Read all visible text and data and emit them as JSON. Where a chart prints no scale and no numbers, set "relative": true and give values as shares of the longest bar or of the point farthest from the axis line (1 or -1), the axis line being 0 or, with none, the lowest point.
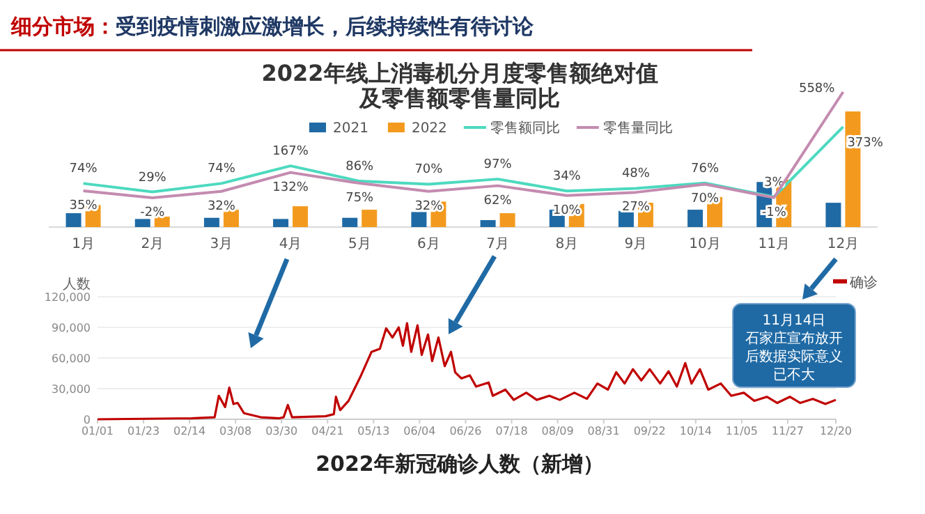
{
  "chart_data": [
    {
      "type": "bar",
      "title": "2022年线上消毒机分月度零售额绝对值及零售额零售量同比",
      "annotations": [
        "细分市场：",
        "受到疫情刺激应激增长，后续持续性有待讨论"
      ],
      "categories": [
        "1月",
        "2月",
        "3月",
        "4月",
        "5月",
        "6月",
        "7月",
        "8月",
        "9月",
        "10月",
        "11月",
        "12月"
      ],
      "relative": true,
      "legend": "top",
      "series": [
        {
          "name": "2021",
          "color": "#1f6aa5",
          "values": [
            0.12,
            0.07,
            0.08,
            0.07,
            0.08,
            0.13,
            0.06,
            0.15,
            0.14,
            0.15,
            0.39,
            0.21
          ]
        },
        {
          "name": "2022",
          "color": "#f39a1e",
          "values": [
            0.19,
            0.09,
            0.15,
            0.18,
            0.15,
            0.22,
            0.12,
            0.2,
            0.21,
            0.26,
            0.41,
            1
          ]
        }
      ]
    },
    {
      "type": "line",
      "legend": "top",
      "series": [
        {
          "name": "零售额同比",
          "color": "#4dd9bf",
          "values": [
            74,
            29,
            74,
            167,
            86,
            70,
            97,
            34,
            48,
            76,
            3,
            373
          ],
          "value_labels": [
            "74%",
            "29%",
            "74%",
            "167%",
            "86%",
            "70%",
            "97%",
            "34%",
            "48%",
            "76%",
            "3%",
            "373%"
          ]
        },
        {
          "name": "零售量同比",
          "color": "#c48bb0",
          "values": [
            35,
            -2,
            32,
            132,
            75,
            32,
            62,
            10,
            27,
            70,
            -1,
            558
          ],
          "value_labels": [
            "35%",
            "-2%",
            "32%",
            "132%",
            "75%",
            "32%",
            "62%",
            "10%",
            "27%",
            "70%",
            "-1%",
            "558%"
          ]
        }
      ]
    },
    {
      "type": "line",
      "title": "2022年新冠确诊人数（新增）",
      "ylabel": "人数",
      "annotations": [
        "11月14日",
        "石家庄宣布放开后数据实际意义已不大"
      ],
      "legend": "top right",
      "grid": "y",
      "marker": "none",
      "x": [
        "--01-01",
        "--02-15",
        "--02-26",
        "--02-28",
        "--03-03",
        "--03-05",
        "--03-07",
        "--03-09",
        "--03-12",
        "--03-20",
        "--03-29",
        "--03-31",
        "--04-02",
        "--04-04",
        "--04-20",
        "--04-24",
        "--04-25",
        "--04-27",
        "--05-01",
        "--05-07",
        "--05-12",
        "--05-16",
        "--05-19",
        "--05-22",
        "--05-25",
        "--05-27",
        "--05-29",
        "--05-31",
        "--06-03",
        "--06-05",
        "--06-08",
        "--06-10",
        "--06-13",
        "--06-16",
        "--06-19",
        "--06-21",
        "--06-24",
        "--06-28",
        "--07-01",
        "--07-07",
        "--07-09",
        "--07-15",
        "--07-19",
        "--07-25",
        "--07-30",
        "--08-05",
        "--08-10",
        "--08-17",
        "--08-23",
        "--08-28",
        "--09-02",
        "--09-06",
        "--09-10",
        "--09-14",
        "--09-18",
        "--09-22",
        "--09-27",
        "--10-01",
        "--10-05",
        "--10-09",
        "--10-12",
        "--10-16",
        "--10-20",
        "--10-26",
        "--10-31",
        "--11-06",
        "--11-11",
        "--11-17",
        "--11-22",
        "--11-28",
        "--12-03",
        "--12-09",
        "--12-15",
        "--12-20"
      ],
      "series": [
        {
          "name": "确诊",
          "color": "#c00000",
          "values": [
            0,
            1000,
            2000,
            23000,
            12000,
            31000,
            15000,
            16000,
            6000,
            2000,
            1000,
            2000,
            14000,
            2000,
            3000,
            5000,
            22000,
            9000,
            18000,
            43000,
            66000,
            69000,
            89000,
            80000,
            90000,
            72000,
            94000,
            66000,
            92000,
            63000,
            83000,
            57000,
            80000,
            52000,
            66000,
            46000,
            40000,
            43000,
            32000,
            36000,
            23000,
            29000,
            19000,
            26000,
            19000,
            23000,
            19000,
            26000,
            20000,
            35000,
            29000,
            46000,
            35000,
            49000,
            38000,
            49000,
            35000,
            47000,
            32000,
            55000,
            35000,
            49000,
            29000,
            35000,
            23000,
            26000,
            18000,
            22000,
            16000,
            22000,
            16000,
            20000,
            15000,
            19000
          ]
        }
      ],
      "xlim": [
        "--01-01",
        "--12-20"
      ],
      "ylim": [
        0,
        120000
      ],
      "yticks": [
        0,
        {
          "value": 30000,
          "label": "30,000"
        },
        {
          "value": 60000,
          "label": "60,000"
        },
        {
          "value": 90000,
          "label": "90,000"
        },
        {
          "value": 120000,
          "label": "120,000"
        }
      ],
      "xticks": [
        {
          "value": "--01-01",
          "label": "01/01"
        },
        {
          "value": "--01-23",
          "label": "01/23"
        },
        {
          "value": "--02-14",
          "label": "02/14"
        },
        {
          "value": "--03-08",
          "label": "03/08"
        },
        {
          "value": "--03-30",
          "label": "03/30"
        },
        {
          "value": "--04-21",
          "label": "04/21"
        },
        {
          "value": "--05-13",
          "label": "05/13"
        },
        {
          "value": "--06-04",
          "label": "06/04"
        },
        {
          "value": "--06-26",
          "label": "06/26"
        },
        {
          "value": "--07-18",
          "label": "07/18"
        },
        {
          "value": "--08-09",
          "label": "08/09"
        },
        {
          "value": "--08-31",
          "label": "08/31"
        },
        {
          "value": "--09-22",
          "label": "09/22"
        },
        {
          "value": "--10-14",
          "label": "10/14"
        },
        {
          "value": "--11-05",
          "label": "11/05"
        },
        {
          "value": "--11-27",
          "label": "11/27"
        },
        {
          "value": "--12-20",
          "label": "12/20"
        }
      ]
    }
  ]
}
